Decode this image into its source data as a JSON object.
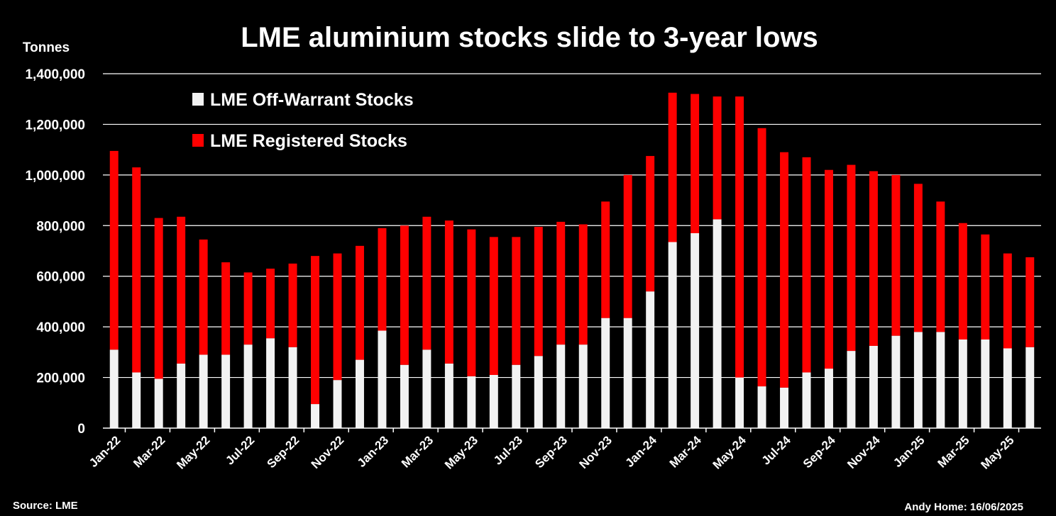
{
  "chart_data": {
    "type": "bar",
    "stacked": true,
    "title": "LME aluminium stocks slide to 3-year lows",
    "ylabel": "Tonnes",
    "ylim": [
      0,
      1400000
    ],
    "yticks": [
      "0",
      "200,000",
      "400,000",
      "600,000",
      "800,000",
      "1,000,000",
      "1,200,000",
      "1,400,000"
    ],
    "xtick_labels": [
      "Jan-22",
      "Mar-22",
      "May-22",
      "Jul-22",
      "Sep-22",
      "Nov-22",
      "Jan-23",
      "Mar-23",
      "May-23",
      "Jul-23",
      "Sep-23",
      "Nov-23",
      "Jan-24",
      "Mar-24",
      "May-24",
      "Jul-24",
      "Sep-24",
      "Nov-24",
      "Jan-25",
      "Mar-25",
      "May-25"
    ],
    "categories": [
      "Jan-22",
      "Feb-22",
      "Mar-22",
      "Apr-22",
      "May-22",
      "Jun-22",
      "Jul-22",
      "Aug-22",
      "Sep-22",
      "Oct-22",
      "Nov-22",
      "Dec-22",
      "Jan-23",
      "Feb-23",
      "Mar-23",
      "Apr-23",
      "May-23",
      "Jun-23",
      "Jul-23",
      "Aug-23",
      "Sep-23",
      "Oct-23",
      "Nov-23",
      "Dec-23",
      "Jan-24",
      "Feb-24",
      "Mar-24",
      "Apr-24",
      "May-24",
      "Jun-24",
      "Jul-24",
      "Aug-24",
      "Sep-24",
      "Oct-24",
      "Nov-24",
      "Dec-24",
      "Jan-25",
      "Feb-25",
      "Mar-25",
      "Apr-25",
      "May-25",
      "Jun-25"
    ],
    "series": [
      {
        "name": "LME Off-Warrant Stocks",
        "color": "#f2f2f2",
        "values": [
          310000,
          220000,
          195000,
          255000,
          290000,
          290000,
          330000,
          355000,
          320000,
          95000,
          190000,
          270000,
          385000,
          250000,
          310000,
          255000,
          205000,
          210000,
          250000,
          285000,
          330000,
          330000,
          435000,
          435000,
          540000,
          735000,
          770000,
          825000,
          200000,
          165000,
          160000,
          220000,
          235000,
          305000,
          325000,
          365000,
          380000,
          380000,
          350000,
          350000,
          315000,
          320000
        ]
      },
      {
        "name": "LME Registered Stocks",
        "color": "#ff0000",
        "values": [
          785000,
          810000,
          635000,
          580000,
          455000,
          365000,
          285000,
          275000,
          330000,
          585000,
          500000,
          450000,
          405000,
          550000,
          525000,
          565000,
          580000,
          545000,
          505000,
          510000,
          485000,
          475000,
          460000,
          565000,
          535000,
          590000,
          550000,
          485000,
          1110000,
          1020000,
          930000,
          850000,
          785000,
          735000,
          690000,
          635000,
          585000,
          515000,
          460000,
          415000,
          375000,
          355000
        ]
      }
    ],
    "legend": [
      "LME Off-Warrant Stocks",
      "LME Registered Stocks"
    ],
    "legend_position": "top-left",
    "grid": true
  },
  "footer": {
    "source": "Source: LME",
    "credit": "Andy Home: 16/06/2025"
  },
  "colors": {
    "background": "#000000",
    "off_warrant": "#f2f2f2",
    "registered": "#ff0000",
    "grid": "#ffffff"
  }
}
